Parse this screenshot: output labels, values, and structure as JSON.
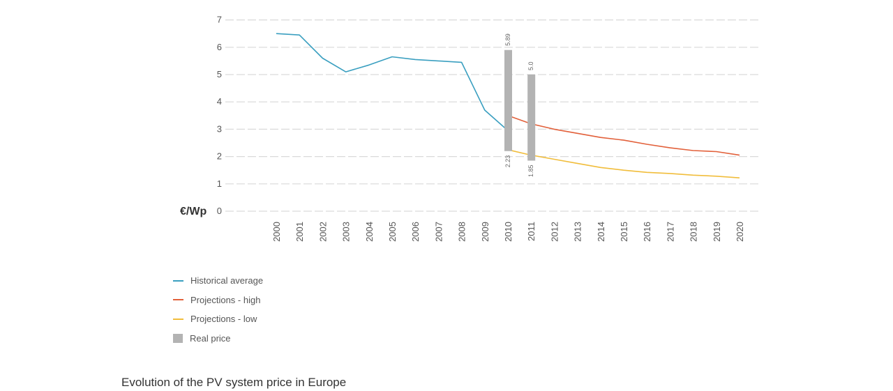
{
  "chart_data": {
    "type": "line",
    "title": "",
    "unit_label": "€/Wp",
    "xlabel": "",
    "ylabel": "",
    "ylim": [
      0,
      7
    ],
    "y_ticks": [
      "0",
      "1",
      "2",
      "3",
      "4",
      "5",
      "6",
      "7"
    ],
    "categories": [
      "2000",
      "2001",
      "2002",
      "2003",
      "2004",
      "2005",
      "2006",
      "2007",
      "2008",
      "2009",
      "2010",
      "2011",
      "2012",
      "2013",
      "2014",
      "2015",
      "2016",
      "2017",
      "2018",
      "2019",
      "2020"
    ],
    "grid": true,
    "legend_position": "bottom-left",
    "series": [
      {
        "name": "Historical average",
        "color": "#3a9fc0",
        "x": [
          "2000",
          "2001",
          "2002",
          "2003",
          "2004",
          "2005",
          "2006",
          "2007",
          "2008",
          "2009",
          "2010"
        ],
        "values": [
          6.5,
          6.45,
          5.6,
          5.1,
          5.35,
          5.65,
          5.55,
          5.5,
          5.45,
          3.7,
          2.95
        ]
      },
      {
        "name": "Projections - high",
        "color": "#e2603a",
        "x": [
          "2010",
          "2011",
          "2012",
          "2013",
          "2014",
          "2015",
          "2016",
          "2017",
          "2018",
          "2019",
          "2020"
        ],
        "values": [
          3.5,
          3.2,
          3.0,
          2.85,
          2.7,
          2.6,
          2.45,
          2.32,
          2.22,
          2.18,
          2.05
        ]
      },
      {
        "name": "Projections - low",
        "color": "#f1bd3b",
        "x": [
          "2010",
          "2011",
          "2012",
          "2013",
          "2014",
          "2015",
          "2016",
          "2017",
          "2018",
          "2019",
          "2020"
        ],
        "values": [
          2.25,
          2.05,
          1.9,
          1.75,
          1.6,
          1.5,
          1.42,
          1.38,
          1.32,
          1.28,
          1.22
        ]
      }
    ],
    "real_price": {
      "name": "Real price",
      "color": "#b3b3b3",
      "bars": [
        {
          "x": "2010",
          "low": 2.2,
          "high": 5.9,
          "low_label": "2.23",
          "high_label": "5.89"
        },
        {
          "x": "2011",
          "low": 1.85,
          "high": 5.0,
          "low_label": "1.85",
          "high_label": "5.0"
        }
      ]
    }
  },
  "caption": "Evolution of the PV system price in Europe"
}
